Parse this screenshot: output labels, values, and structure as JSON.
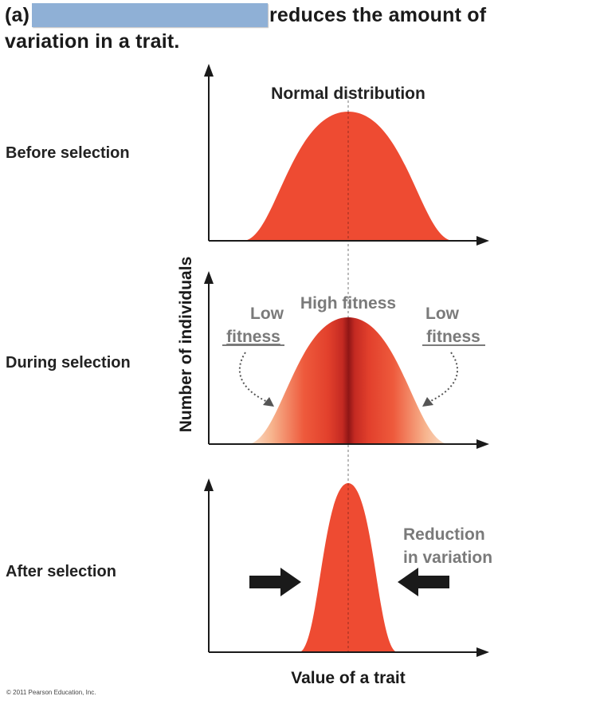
{
  "title": {
    "prefix": "(a)",
    "redacted_note": "",
    "line1_rest": "reduces the amount of",
    "line2": "variation in a trait."
  },
  "rows": {
    "before": "Before selection",
    "during": "During selection",
    "after": "After selection"
  },
  "panel1": {
    "heading": "Normal distribution"
  },
  "panel2": {
    "high_fitness": "High fitness",
    "low_left_1": "Low",
    "low_left_2": "fitness",
    "low_right_1": "Low",
    "low_right_2": "fitness"
  },
  "panel3": {
    "reduction_1": "Reduction",
    "reduction_2": "in variation"
  },
  "axes": {
    "y_label": "Number of individuals",
    "x_label": "Value of a trait"
  },
  "credit": "© 2011 Pearson Education, Inc.",
  "colors": {
    "curve": "#ee4b32",
    "curve_dark": "#a81f1f",
    "curve_light": "#f7c2a3",
    "axis": "#1a1a1a",
    "gray_text": "#7a7a7a",
    "redaction": "#8fb0d6"
  }
}
